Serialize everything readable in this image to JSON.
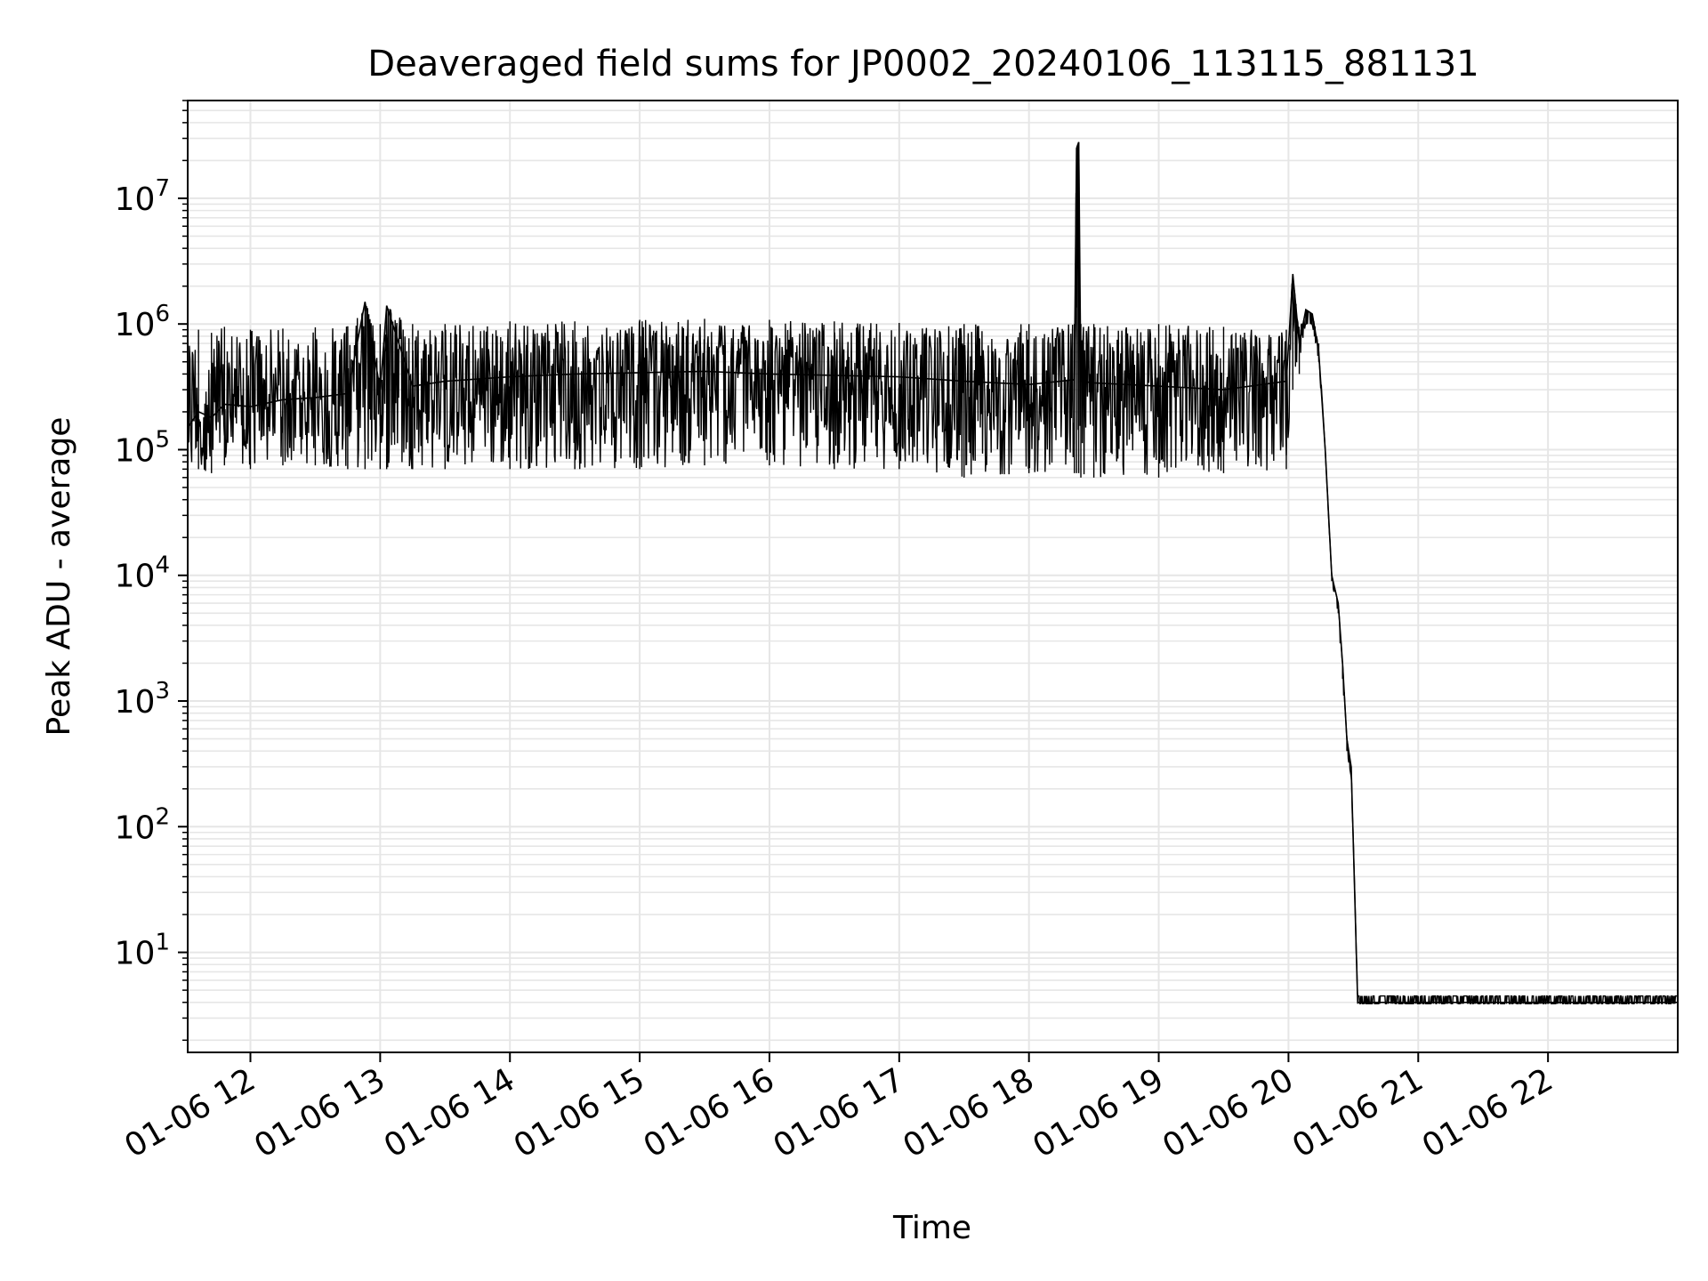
{
  "chart_data": {
    "type": "line",
    "title": "Deaveraged field sums for JP0002_20240106_113115_881131",
    "xlabel": "Time",
    "ylabel": "Peak ADU - average",
    "yscale": "log",
    "grid": "on (major and minor)",
    "line_color": "#000000",
    "grid_color": "#e6e6e6",
    "xlim": [
      "01-06 11:31",
      "01-06 23:00"
    ],
    "ylim": [
      1.6,
      60000000
    ],
    "x_ticks": [
      "01-06 12",
      "01-06 13",
      "01-06 14",
      "01-06 15",
      "01-06 16",
      "01-06 17",
      "01-06 18",
      "01-06 19",
      "01-06 20",
      "01-06 21",
      "01-06 22"
    ],
    "y_ticks": [
      {
        "value": 10,
        "base": "10",
        "exp": "1"
      },
      {
        "value": 100,
        "base": "10",
        "exp": "2"
      },
      {
        "value": 1000,
        "base": "10",
        "exp": "3"
      },
      {
        "value": 10000,
        "base": "10",
        "exp": "4"
      },
      {
        "value": 100000,
        "base": "10",
        "exp": "5"
      },
      {
        "value": 1000000,
        "base": "10",
        "exp": "6"
      },
      {
        "value": 10000000,
        "base": "10",
        "exp": "7"
      }
    ],
    "series": [
      {
        "x": [
          "01-06 11:31",
          "01-06 11:36",
          "01-06 11:42",
          "01-06 11:48",
          "01-06 12:00",
          "01-06 12:15",
          "01-06 12:30",
          "01-06 12:45",
          "01-06 12:53",
          "01-06 13:00",
          "01-06 13:03",
          "01-06 13:15",
          "01-06 13:30",
          "01-06 14:00",
          "01-06 14:30",
          "01-06 15:00",
          "01-06 15:30",
          "01-06 16:00",
          "01-06 16:30",
          "01-06 17:00",
          "01-06 17:30",
          "01-06 18:00",
          "01-06 18:21",
          "01-06 18:22",
          "01-06 18:23",
          "01-06 18:24",
          "01-06 18:30",
          "01-06 19:00",
          "01-06 19:30",
          "01-06 19:59",
          "01-06 20:02",
          "01-06 20:05",
          "01-06 20:08",
          "01-06 20:11",
          "01-06 20:14",
          "01-06 20:17",
          "01-06 20:20",
          "01-06 20:23",
          "01-06 20:25",
          "01-06 20:27",
          "01-06 20:29",
          "01-06 20:32",
          "01-06 20:34",
          "01-06 20:35",
          "01-06 20:36",
          "01-06 21:00",
          "01-06 22:00",
          "01-06 23:00"
        ],
        "y": [
          150000,
          200000,
          180000,
          230000,
          220000,
          250000,
          260000,
          280000,
          1500000,
          300000,
          1400000,
          320000,
          350000,
          380000,
          400000,
          410000,
          420000,
          400000,
          390000,
          380000,
          350000,
          330000,
          360000,
          25000000,
          28000000,
          350000,
          340000,
          320000,
          300000,
          350000,
          2500000,
          700000,
          1300000,
          1200000,
          600000,
          100000,
          10000,
          6000,
          2000,
          500,
          300,
          4,
          4,
          4,
          4,
          4,
          4,
          4
        ],
        "band_high": [
          800000,
          900000,
          850000,
          950000,
          900000,
          920000,
          940000,
          960000,
          1500000,
          1000000,
          1400000,
          1000000,
          1000000,
          1050000,
          1050000,
          1080000,
          1100000,
          1080000,
          1050000,
          1020000,
          1000000,
          1000000,
          1000000,
          25000000,
          28000000,
          1000000,
          1000000,
          1000000,
          950000,
          900000,
          2500000,
          900000,
          1300000,
          1200000,
          700000,
          100000,
          10000,
          6000,
          2000,
          500,
          300,
          4.5,
          4.5,
          4.5,
          4.5,
          4.5,
          4.5,
          4.5
        ],
        "band_low": [
          60000,
          70000,
          65000,
          75000,
          70000,
          75000,
          75000,
          70000,
          70000,
          70000,
          70000,
          70000,
          70000,
          70000,
          70000,
          70000,
          75000,
          75000,
          70000,
          70000,
          60000,
          65000,
          65000,
          65000,
          65000,
          60000,
          60000,
          60000,
          65000,
          70000,
          300000,
          400000,
          1000000,
          1000000,
          500000,
          100000,
          9000,
          5000,
          1500,
          400,
          250,
          3.9,
          3.9,
          3.9,
          3.9,
          3.9,
          3.9,
          3.9
        ]
      }
    ]
  }
}
